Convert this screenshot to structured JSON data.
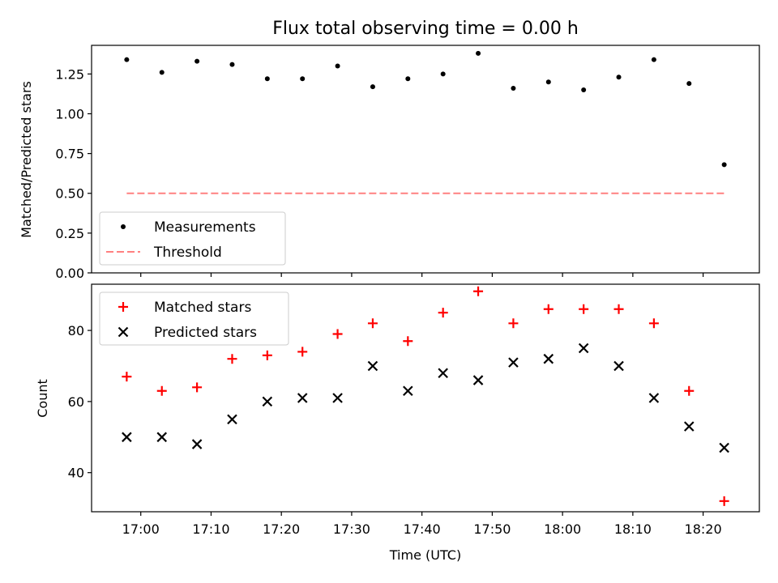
{
  "chart_data": [
    {
      "type": "scatter",
      "title": "Flux total observing time = 0.00 h",
      "xlabel": "",
      "ylabel": "Matched/Predicted stars",
      "ylim": [
        0.0,
        1.43
      ],
      "yticks": [
        "0.00",
        "0.25",
        "0.50",
        "0.75",
        "1.00",
        "1.25"
      ],
      "ytick_values": [
        0.0,
        0.25,
        0.5,
        0.75,
        1.0,
        1.25
      ],
      "x": [
        "16:58",
        "17:03",
        "17:08",
        "17:13",
        "17:18",
        "17:23",
        "17:28",
        "17:33",
        "17:38",
        "17:43",
        "17:48",
        "17:53",
        "17:58",
        "18:03",
        "18:08",
        "18:13",
        "18:18",
        "18:23"
      ],
      "series": [
        {
          "name": "Measurements",
          "marker": "dot",
          "color": "#000000",
          "values": [
            1.34,
            1.26,
            1.33,
            1.31,
            1.22,
            1.22,
            1.3,
            1.17,
            1.22,
            1.25,
            1.38,
            1.16,
            1.2,
            1.15,
            1.23,
            1.34,
            1.19,
            0.68
          ]
        },
        {
          "name": "Threshold",
          "marker": "dashed-line",
          "color": "#ff8080",
          "values": [
            0.5,
            0.5
          ]
        }
      ],
      "legend": "lower-left",
      "grid": false
    },
    {
      "type": "scatter",
      "title": "",
      "xlabel": "Time (UTC)",
      "ylabel": "Count",
      "ylim": [
        29,
        93
      ],
      "yticks": [
        "40",
        "60",
        "80"
      ],
      "ytick_values": [
        40,
        60,
        80
      ],
      "xticks": [
        "17:00",
        "17:10",
        "17:20",
        "17:30",
        "17:40",
        "17:50",
        "18:00",
        "18:10",
        "18:20"
      ],
      "x": [
        "16:58",
        "17:03",
        "17:08",
        "17:13",
        "17:18",
        "17:23",
        "17:28",
        "17:33",
        "17:38",
        "17:43",
        "17:48",
        "17:53",
        "17:58",
        "18:03",
        "18:08",
        "18:13",
        "18:18",
        "18:23"
      ],
      "series": [
        {
          "name": "Matched stars",
          "marker": "plus",
          "color": "#ff0000",
          "values": [
            67,
            63,
            64,
            72,
            73,
            74,
            79,
            82,
            77,
            85,
            91,
            82,
            86,
            86,
            86,
            82,
            63,
            32
          ]
        },
        {
          "name": "Predicted stars",
          "marker": "x",
          "color": "#000000",
          "values": [
            50,
            50,
            48,
            55,
            60,
            61,
            61,
            70,
            63,
            68,
            66,
            71,
            72,
            75,
            70,
            61,
            53,
            47
          ]
        }
      ],
      "legend": "upper-left",
      "grid": false
    }
  ]
}
